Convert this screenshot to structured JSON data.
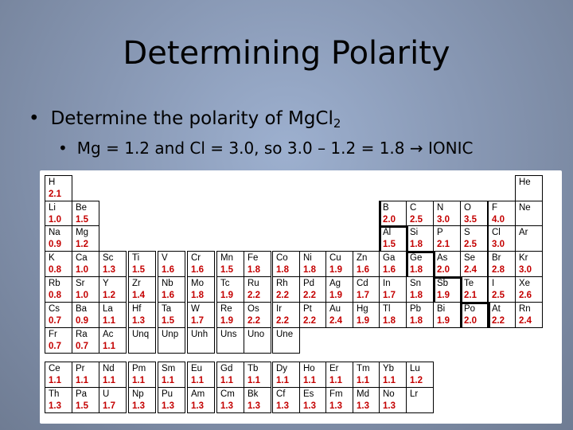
{
  "slide": {
    "title": "Determining Polarity",
    "bullet1_text": "Determine the polarity of MgCl",
    "bullet1_sub": "2",
    "bullet2_text": "Mg = 1.2 and Cl = 3.0, so 3.0 – 1.2 = 1.8",
    "bullet2_arrow": "→",
    "bullet2_result": "IONIC"
  },
  "periodic_table": {
    "main_rows": [
      [
        [
          "H",
          "2.1"
        ],
        null,
        null,
        null,
        null,
        null,
        null,
        null,
        null,
        null,
        null,
        null,
        null,
        null,
        null,
        null,
        null,
        [
          "He",
          ""
        ]
      ],
      [
        [
          "Li",
          "1.0"
        ],
        [
          "Be",
          "1.5"
        ],
        null,
        null,
        null,
        null,
        null,
        null,
        null,
        null,
        null,
        null,
        [
          "B",
          "2.0"
        ],
        [
          "C",
          "2.5"
        ],
        [
          "N",
          "3.0"
        ],
        [
          "O",
          "3.5"
        ],
        [
          "F",
          "4.0"
        ],
        [
          "Ne",
          ""
        ]
      ],
      [
        [
          "Na",
          "0.9"
        ],
        [
          "Mg",
          "1.2"
        ],
        null,
        null,
        null,
        null,
        null,
        null,
        null,
        null,
        null,
        null,
        [
          "Al",
          "1.5"
        ],
        [
          "Si",
          "1.8"
        ],
        [
          "P",
          "2.1"
        ],
        [
          "S",
          "2.5"
        ],
        [
          "Cl",
          "3.0"
        ],
        [
          "Ar",
          ""
        ]
      ],
      [
        [
          "K",
          "0.8"
        ],
        [
          "Ca",
          "1.0"
        ],
        [
          "Sc",
          "1.3"
        ],
        [
          "Ti",
          "1.5"
        ],
        [
          "V",
          "1.6"
        ],
        [
          "Cr",
          "1.6"
        ],
        [
          "Mn",
          "1.5"
        ],
        [
          "Fe",
          "1.8"
        ],
        [
          "Co",
          "1.8"
        ],
        [
          "Ni",
          "1.8"
        ],
        [
          "Cu",
          "1.9"
        ],
        [
          "Zn",
          "1.6"
        ],
        [
          "Ga",
          "1.6"
        ],
        [
          "Ge",
          "1.8"
        ],
        [
          "As",
          "2.0"
        ],
        [
          "Se",
          "2.4"
        ],
        [
          "Br",
          "2.8"
        ],
        [
          "Kr",
          "3.0"
        ]
      ],
      [
        [
          "Rb",
          "0.8"
        ],
        [
          "Sr",
          "1.0"
        ],
        [
          "Y",
          "1.2"
        ],
        [
          "Zr",
          "1.4"
        ],
        [
          "Nb",
          "1.6"
        ],
        [
          "Mo",
          "1.8"
        ],
        [
          "Tc",
          "1.9"
        ],
        [
          "Ru",
          "2.2"
        ],
        [
          "Rh",
          "2.2"
        ],
        [
          "Pd",
          "2.2"
        ],
        [
          "Ag",
          "1.9"
        ],
        [
          "Cd",
          "1.7"
        ],
        [
          "In",
          "1.7"
        ],
        [
          "Sn",
          "1.8"
        ],
        [
          "Sb",
          "1.9"
        ],
        [
          "Te",
          "2.1"
        ],
        [
          "I",
          "2.5"
        ],
        [
          "Xe",
          "2.6"
        ]
      ],
      [
        [
          "Cs",
          "0.7"
        ],
        [
          "Ba",
          "0.9"
        ],
        [
          "La",
          "1.1"
        ],
        [
          "Hf",
          "1.3"
        ],
        [
          "Ta",
          "1.5"
        ],
        [
          "W",
          "1.7"
        ],
        [
          "Re",
          "1.9"
        ],
        [
          "Os",
          "2.2"
        ],
        [
          "Ir",
          "2.2"
        ],
        [
          "Pt",
          "2.2"
        ],
        [
          "Au",
          "2.4"
        ],
        [
          "Hg",
          "1.9"
        ],
        [
          "Tl",
          "1.8"
        ],
        [
          "Pb",
          "1.8"
        ],
        [
          "Bi",
          "1.9"
        ],
        [
          "Po",
          "2.0"
        ],
        [
          "At",
          "2.2"
        ],
        [
          "Rn",
          "2.4"
        ]
      ],
      [
        [
          "Fr",
          "0.7"
        ],
        [
          "Ra",
          "0.7"
        ],
        [
          "Ac",
          "1.1"
        ],
        [
          "Unq",
          ""
        ],
        [
          "Unp",
          ""
        ],
        [
          "Unh",
          ""
        ],
        [
          "Uns",
          ""
        ],
        [
          "Uno",
          ""
        ],
        [
          "Une",
          ""
        ],
        null,
        null,
        null,
        null,
        null,
        null,
        null,
        null,
        null
      ]
    ],
    "lanthanide_row": [
      [
        "Ce",
        "1.1"
      ],
      [
        "Pr",
        "1.1"
      ],
      [
        "Nd",
        "1.1"
      ],
      [
        "Pm",
        "1.1"
      ],
      [
        "Sm",
        "1.1"
      ],
      [
        "Eu",
        "1.1"
      ],
      [
        "Gd",
        "1.1"
      ],
      [
        "Tb",
        "1.1"
      ],
      [
        "Dy",
        "1.1"
      ],
      [
        "Ho",
        "1.1"
      ],
      [
        "Er",
        "1.1"
      ],
      [
        "Tm",
        "1.1"
      ],
      [
        "Yb",
        "1.1"
      ],
      [
        "Lu",
        "1.2"
      ]
    ],
    "actinide_row": [
      [
        "Th",
        "1.3"
      ],
      [
        "Pa",
        "1.5"
      ],
      [
        "U",
        "1.7"
      ],
      [
        "Np",
        "1.3"
      ],
      [
        "Pu",
        "1.3"
      ],
      [
        "Am",
        "1.3"
      ],
      [
        "Cm",
        "1.3"
      ],
      [
        "Bk",
        "1.3"
      ],
      [
        "Cf",
        "1.3"
      ],
      [
        "Es",
        "1.3"
      ],
      [
        "Fm",
        "1.3"
      ],
      [
        "Md",
        "1.3"
      ],
      [
        "No",
        "1.3"
      ],
      [
        "Lr",
        ""
      ]
    ],
    "symbol_color": "#000000",
    "electronegativity_color": "#c40000"
  }
}
